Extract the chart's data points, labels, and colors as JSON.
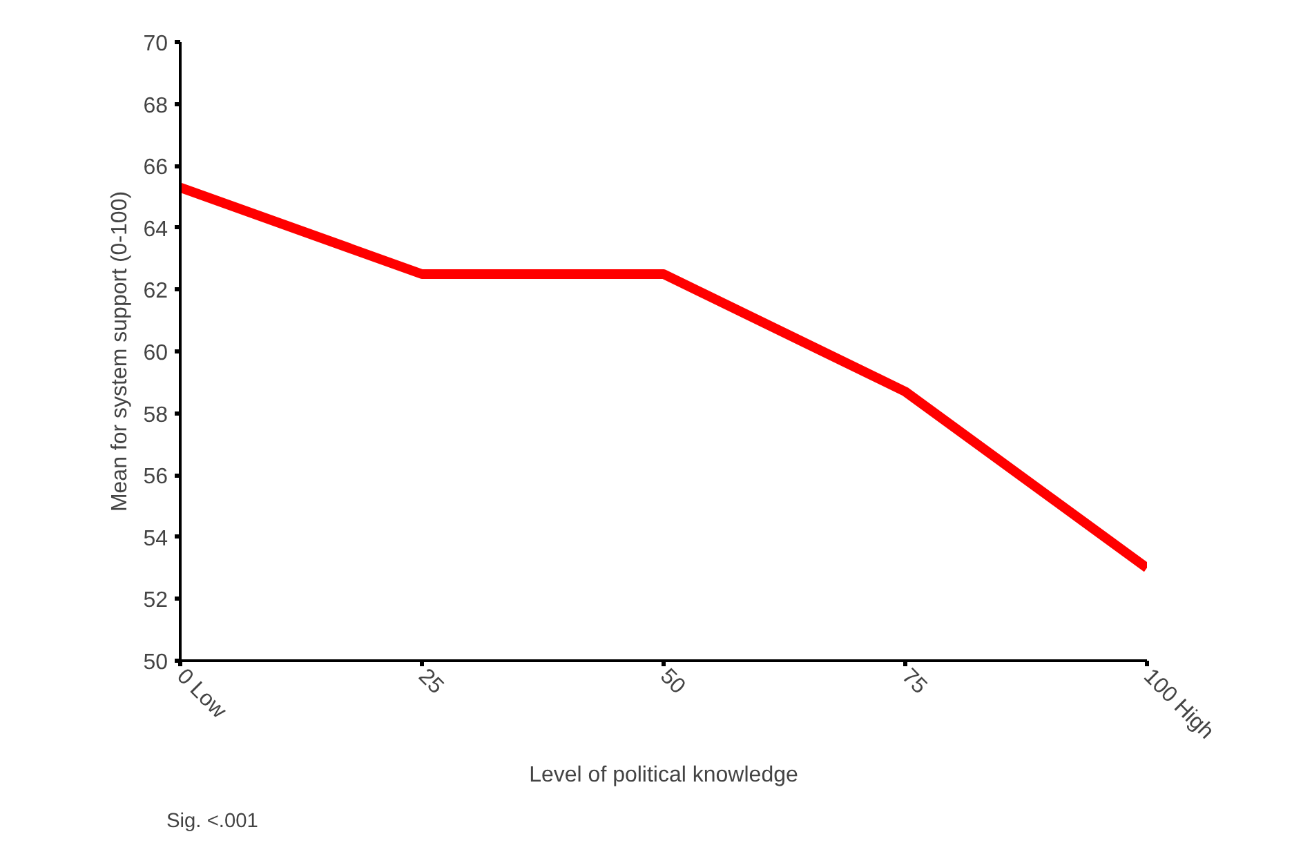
{
  "chart_data": {
    "type": "line",
    "xlabel": "Level of political knowledge",
    "ylabel": "Mean for system support (0-100)",
    "categories": [
      "0 Low",
      "25",
      "50",
      "75",
      "100 High"
    ],
    "series": [
      {
        "color": "#ff0000",
        "values": [
          65.3,
          62.5,
          62.5,
          58.7,
          53.0
        ]
      }
    ],
    "ylim": [
      50,
      70
    ],
    "yticks": [
      50,
      52,
      54,
      56,
      58,
      60,
      62,
      64,
      66,
      68,
      70
    ],
    "annotations": [
      "Sig. <.001"
    ],
    "grid": false,
    "marker": "none",
    "line_style": "solid"
  }
}
